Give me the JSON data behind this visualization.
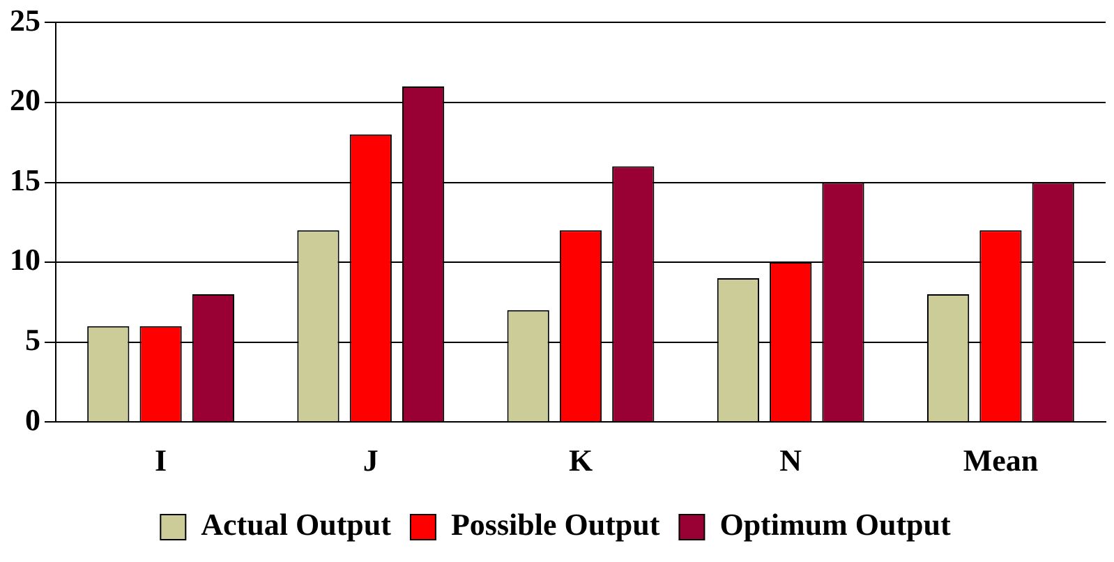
{
  "chart_data": {
    "type": "bar",
    "categories": [
      "I",
      "J",
      "K",
      "N",
      "Mean"
    ],
    "series": [
      {
        "name": "Actual Output",
        "color": "#cccc99",
        "values": [
          6,
          12,
          7,
          9,
          8
        ]
      },
      {
        "name": "Possible Output",
        "color": "#ff0000",
        "values": [
          6,
          18,
          12,
          10,
          12
        ]
      },
      {
        "name": "Optimum Output",
        "color": "#990033",
        "values": [
          8,
          21,
          16,
          15,
          15
        ]
      }
    ],
    "ylim": [
      0,
      25
    ],
    "yticks": [
      0,
      5,
      10,
      15,
      20,
      25
    ],
    "grid": "y",
    "legend": "bottom"
  }
}
